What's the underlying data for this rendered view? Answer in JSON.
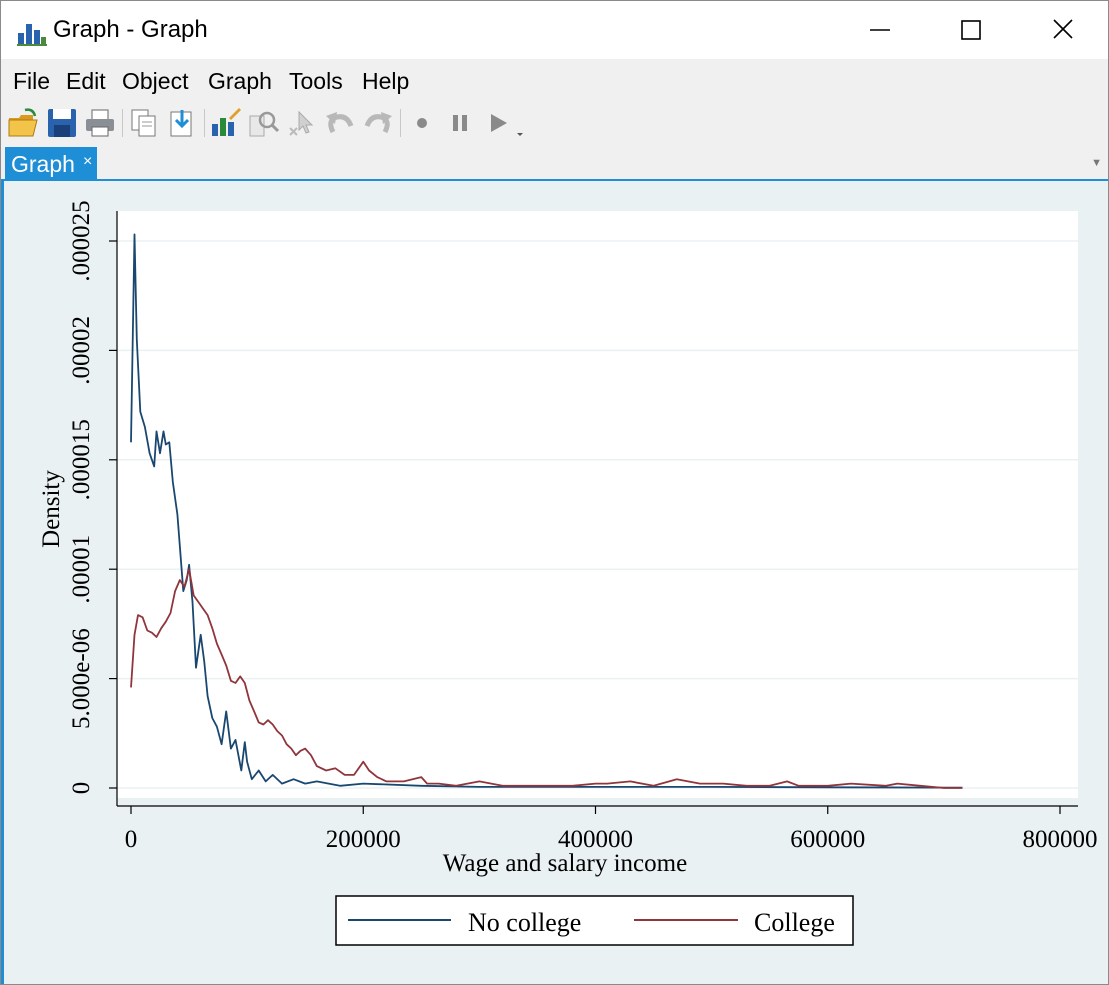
{
  "window": {
    "title": "Graph - Graph",
    "controls": [
      "minimize",
      "maximize",
      "close"
    ]
  },
  "menu": {
    "items": [
      "File",
      "Edit",
      "Object",
      "Graph",
      "Tools",
      "Help"
    ]
  },
  "toolbar": {
    "icons": [
      "open-icon",
      "save-icon",
      "print-icon",
      "copy-icon",
      "paste-icon",
      "graph-editor-icon",
      "zoom-icon",
      "pointer-icon",
      "undo-icon",
      "redo-icon",
      "record-icon",
      "pause-icon",
      "play-icon"
    ]
  },
  "tabs": [
    {
      "label": "Graph",
      "close": "×",
      "active": true
    }
  ],
  "colors": {
    "accent": "#1e8fd6",
    "plot_region_bg": "#eaf1f3",
    "no_college": "#1a476f",
    "college": "#90353b"
  },
  "chart_data": {
    "type": "line",
    "title": "",
    "xlabel": "Wage and salary income",
    "ylabel": "Density",
    "xlim": [
      0,
      800000
    ],
    "ylim": [
      0,
      2.5e-05
    ],
    "xticks": [
      0,
      200000,
      400000,
      600000,
      800000
    ],
    "xtick_labels": [
      "0",
      "200000",
      "400000",
      "600000",
      "800000"
    ],
    "yticks": [
      0,
      5e-06,
      1e-05,
      1.5e-05,
      2e-05,
      2.5e-05
    ],
    "ytick_labels": [
      "0",
      "5.000e-06",
      ".00001",
      ".000015",
      ".00002",
      ".000025"
    ],
    "grid": true,
    "legend": "bottom",
    "series": [
      {
        "name": "No college",
        "x": [
          0,
          3000,
          5000,
          8000,
          12000,
          16000,
          20000,
          22000,
          25000,
          28000,
          30000,
          33000,
          36000,
          40000,
          45000,
          48000,
          50000,
          53000,
          56000,
          60000,
          63000,
          66000,
          70000,
          74000,
          78000,
          82000,
          86000,
          90000,
          95000,
          98000,
          100000,
          104000,
          110000,
          116000,
          122000,
          130000,
          140000,
          150000,
          160000,
          180000,
          200000,
          250000,
          300000,
          400000,
          500000,
          600000,
          700000,
          716000
        ],
        "y": [
          1.58e-05,
          2.53e-05,
          2.05e-05,
          1.72e-05,
          1.65e-05,
          1.53e-05,
          1.47e-05,
          1.63e-05,
          1.53e-05,
          1.63e-05,
          1.57e-05,
          1.58e-05,
          1.4e-05,
          1.25e-05,
          9e-06,
          9.5e-06,
          1.02e-05,
          8.5e-06,
          5.5e-06,
          7e-06,
          5.8e-06,
          4.2e-06,
          3.2e-06,
          2.8e-06,
          2e-06,
          3.5e-06,
          1.8e-06,
          2.2e-06,
          8e-07,
          2.1e-06,
          1.2e-06,
          4e-07,
          8e-07,
          3e-07,
          6e-07,
          2e-07,
          4e-07,
          2e-07,
          3e-07,
          1e-07,
          2e-07,
          1e-07,
          5e-08,
          5e-08,
          5e-08,
          3e-08,
          2e-08,
          2e-08
        ]
      },
      {
        "name": "College",
        "x": [
          0,
          3000,
          6000,
          10000,
          14000,
          18000,
          22000,
          26000,
          30000,
          34000,
          38000,
          42000,
          46000,
          50000,
          54000,
          58000,
          62000,
          66000,
          70000,
          74000,
          78000,
          82000,
          86000,
          90000,
          94000,
          98000,
          102000,
          106000,
          110000,
          114000,
          118000,
          122000,
          126000,
          130000,
          134000,
          138000,
          142000,
          146000,
          150000,
          155000,
          160000,
          168000,
          176000,
          184000,
          192000,
          200000,
          205000,
          212000,
          220000,
          235000,
          250000,
          255000,
          265000,
          280000,
          300000,
          320000,
          350000,
          380000,
          400000,
          410000,
          430000,
          450000,
          470000,
          490000,
          510000,
          530000,
          550000,
          565000,
          575000,
          600000,
          620000,
          650000,
          660000,
          680000,
          700000,
          716000
        ],
        "y": [
          4.6e-06,
          7e-06,
          7.9e-06,
          7.8e-06,
          7.2e-06,
          7.1e-06,
          6.9e-06,
          7.3e-06,
          7.6e-06,
          8e-06,
          9e-06,
          9.5e-06,
          9.2e-06,
          1e-05,
          8.8e-06,
          8.5e-06,
          8.2e-06,
          7.9e-06,
          7.3e-06,
          6.6e-06,
          6.1e-06,
          5.6e-06,
          4.9e-06,
          4.8e-06,
          5.1e-06,
          4.8e-06,
          4e-06,
          3.5e-06,
          3e-06,
          2.9e-06,
          3.1e-06,
          2.9e-06,
          2.6e-06,
          2.4e-06,
          2e-06,
          1.8e-06,
          1.5e-06,
          1.7e-06,
          1.8e-06,
          1.5e-06,
          1e-06,
          8e-07,
          9e-07,
          6e-07,
          6e-07,
          1.2e-06,
          8e-07,
          5e-07,
          3e-07,
          3e-07,
          5e-07,
          2e-07,
          2e-07,
          1e-07,
          3e-07,
          1e-07,
          1e-07,
          1e-07,
          2e-07,
          2e-07,
          3e-07,
          1e-07,
          4e-07,
          2e-07,
          2e-07,
          1e-07,
          1e-07,
          3e-07,
          1e-07,
          1e-07,
          2e-07,
          1e-07,
          2e-07,
          1e-07,
          0.0,
          0.0
        ]
      }
    ]
  }
}
